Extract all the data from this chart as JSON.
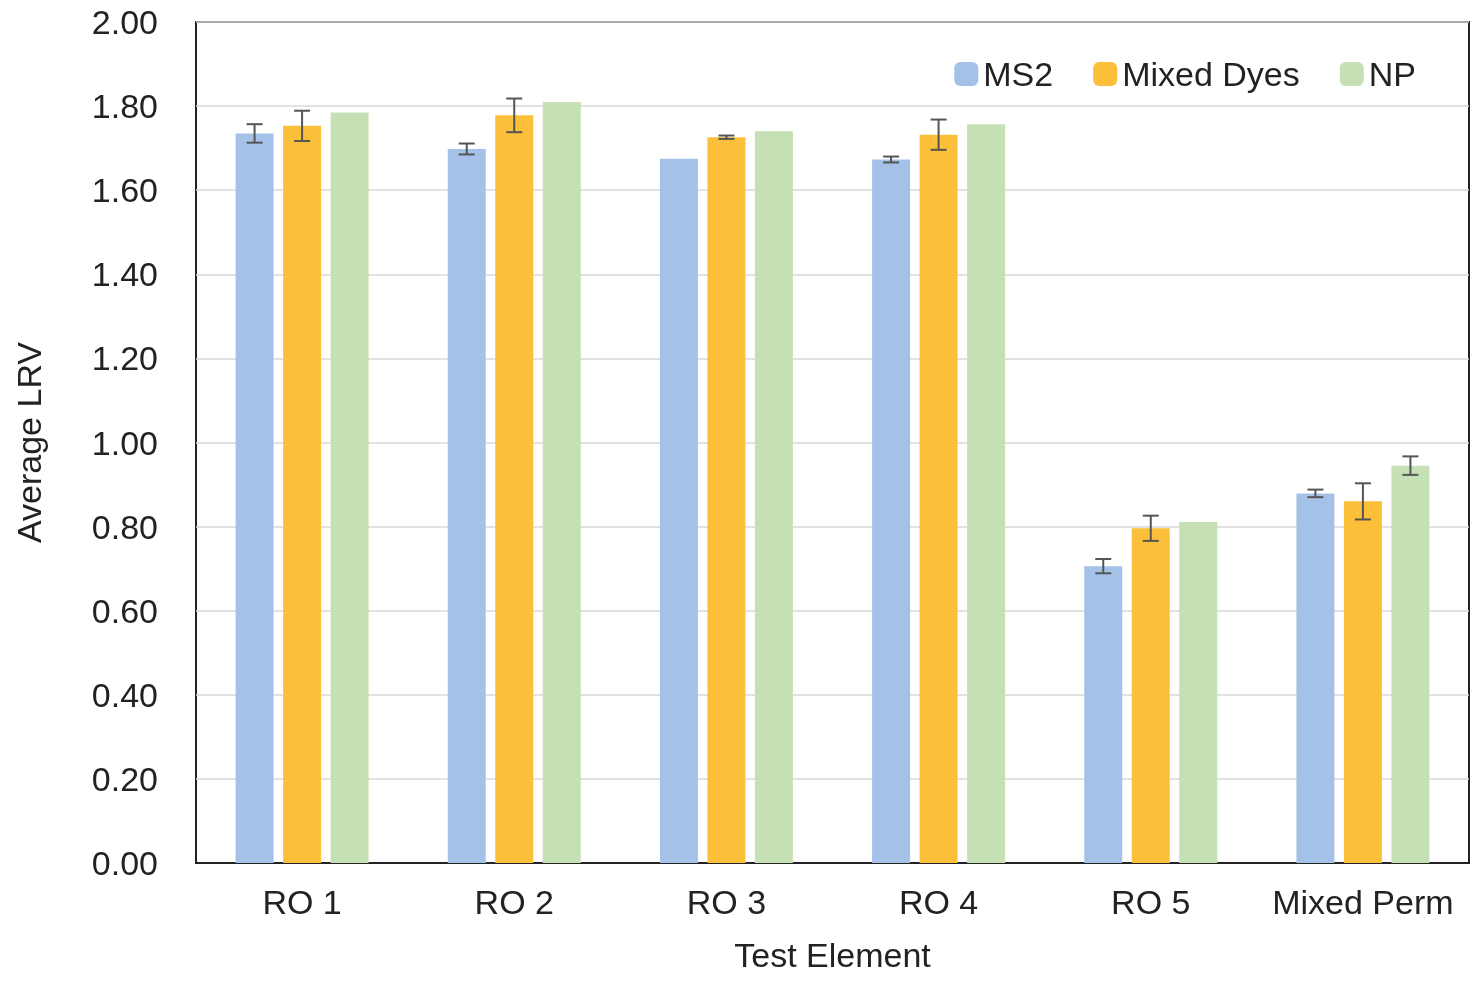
{
  "chart_data": {
    "type": "bar",
    "xlabel": "Test Element",
    "ylabel": "Average LRV",
    "categories": [
      "RO 1",
      "RO 2",
      "RO 3",
      "RO 4",
      "RO 5",
      "Mixed Perm"
    ],
    "series": [
      {
        "name": "MS2",
        "color": "#a4c2e8",
        "values": [
          1.735,
          1.698,
          1.675,
          1.673,
          0.706,
          0.879
        ],
        "errors": [
          0.022,
          0.013,
          null,
          0.007,
          0.017,
          0.009
        ]
      },
      {
        "name": "Mixed Dyes",
        "color": "#fbbf3a",
        "values": [
          1.753,
          1.778,
          1.726,
          1.732,
          0.796,
          0.86
        ],
        "errors": [
          0.036,
          0.04,
          0.004,
          0.036,
          0.03,
          0.043
        ]
      },
      {
        "name": "NP",
        "color": "#c5e0b4",
        "values": [
          1.785,
          1.81,
          1.74,
          1.757,
          0.811,
          0.945
        ],
        "errors": [
          null,
          null,
          null,
          null,
          null,
          0.022
        ]
      }
    ],
    "ylim": [
      0,
      2
    ],
    "yticks": [
      {
        "value": 0,
        "label": "0.00"
      },
      {
        "value": 0.2,
        "label": "0.20"
      },
      {
        "value": 0.4,
        "label": "0.40"
      },
      {
        "value": 0.6,
        "label": "0.60"
      },
      {
        "value": 0.8,
        "label": "0.80"
      },
      {
        "value": 1,
        "label": "1.00"
      },
      {
        "value": 1.2,
        "label": "1.20"
      },
      {
        "value": 1.4,
        "label": "1.40"
      },
      {
        "value": 1.6,
        "label": "1.60"
      },
      {
        "value": 1.8,
        "label": "1.80"
      },
      {
        "value": 2,
        "label": "2.00"
      }
    ],
    "grid": "y",
    "legend": "top right"
  }
}
